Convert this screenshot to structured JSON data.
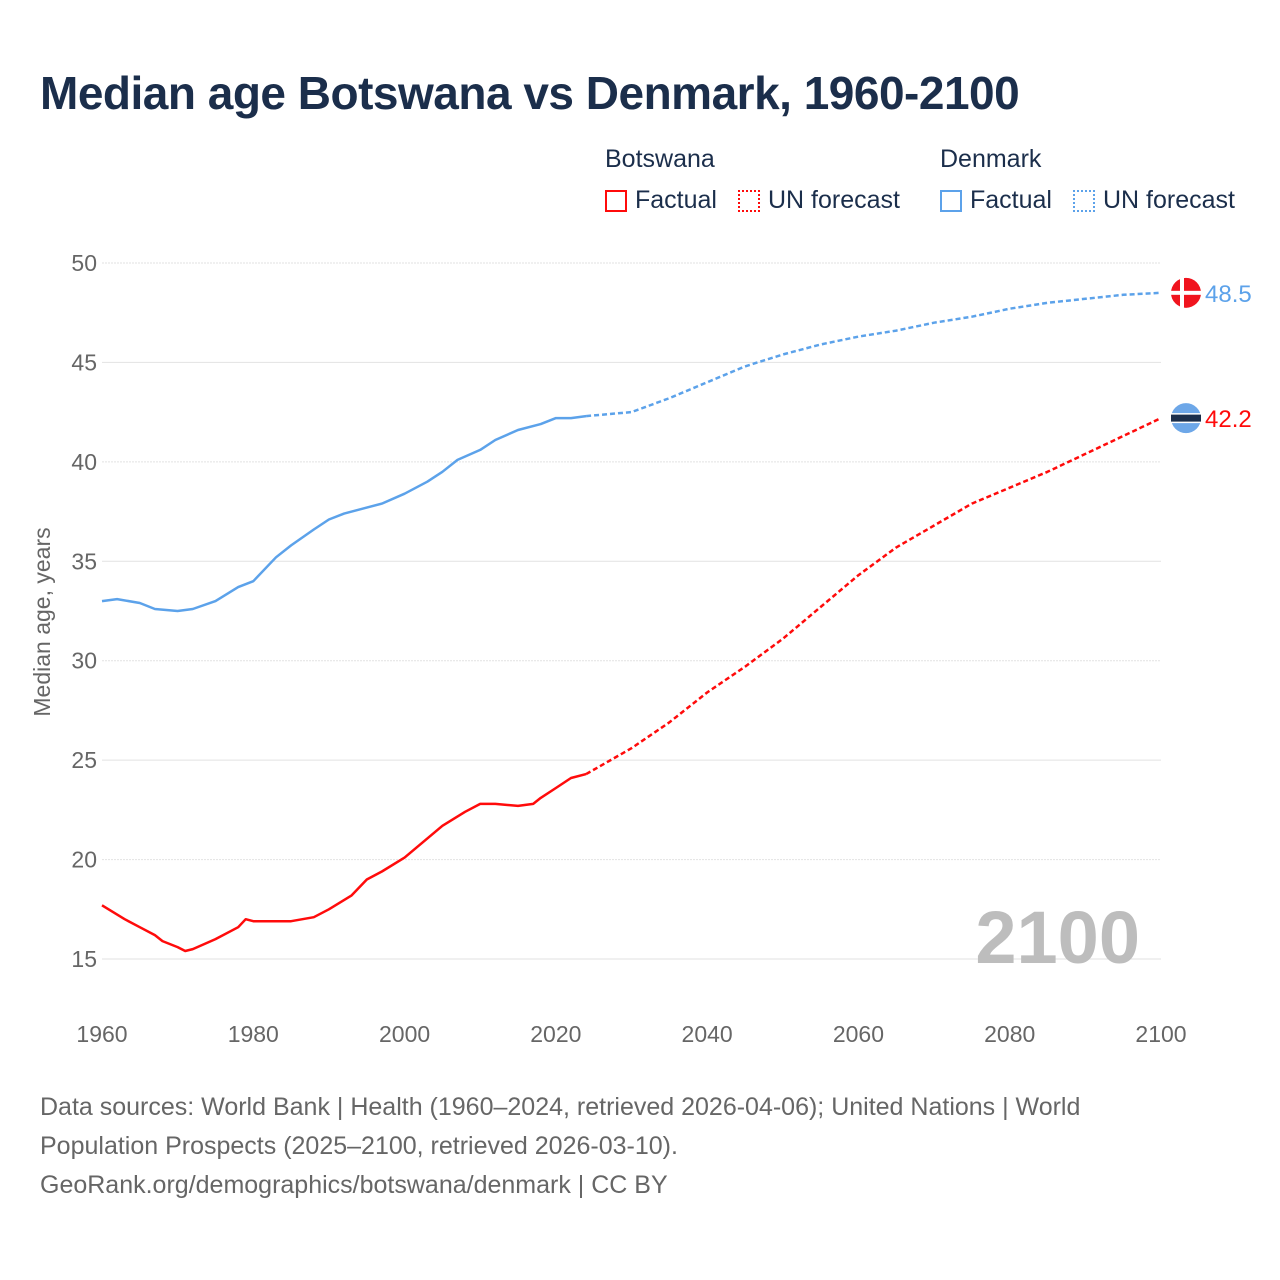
{
  "title": "Median age Botswana vs Denmark, 1960-2100",
  "legend": {
    "botswana": {
      "name": "Botswana",
      "factual": "Factual",
      "forecast": "UN forecast"
    },
    "denmark": {
      "name": "Denmark",
      "factual": "Factual",
      "forecast": "UN forecast"
    }
  },
  "colors": {
    "botswana": "#ff0b0b",
    "denmark": "#5ca2ea",
    "text": "#1b2e4b"
  },
  "watermark_year": "2100",
  "source_lines": [
    "Data sources: World Bank | Health (1960–2024, retrieved 2026-04-06); United Nations | World",
    "Population Prospects (2025–2100, retrieved 2026-03-10).",
    "GeoRank.org/demographics/botswana/denmark | CC BY"
  ],
  "chart_data": {
    "type": "line",
    "title": "Median age Botswana vs Denmark, 1960-2100",
    "xlabel": "",
    "ylabel": "Median age, years",
    "xlim": [
      1960,
      2100
    ],
    "ylim": [
      15,
      50
    ],
    "xticks": [
      1960,
      1980,
      2000,
      2020,
      2040,
      2060,
      2080,
      2100
    ],
    "yticks": [
      15,
      20,
      25,
      30,
      35,
      40,
      45,
      50
    ],
    "grid": true,
    "legend": "top-right",
    "end_labels": {
      "denmark": "48.5",
      "botswana": "42.2"
    },
    "series": [
      {
        "name": "Denmark",
        "kind": "factual",
        "color": "#5ca2ea",
        "x": [
          1960,
          1962,
          1965,
          1967,
          1970,
          1972,
          1975,
          1978,
          1980,
          1983,
          1985,
          1988,
          1990,
          1992,
          1995,
          1997,
          2000,
          2003,
          2005,
          2007,
          2010,
          2012,
          2015,
          2018,
          2020,
          2022,
          2024
        ],
        "y": [
          33.0,
          33.1,
          32.9,
          32.6,
          32.5,
          32.6,
          33.0,
          33.7,
          34.0,
          35.2,
          35.8,
          36.6,
          37.1,
          37.4,
          37.7,
          37.9,
          38.4,
          39.0,
          39.5,
          40.1,
          40.6,
          41.1,
          41.6,
          41.9,
          42.2,
          42.2,
          42.3
        ]
      },
      {
        "name": "Denmark",
        "kind": "UN forecast",
        "color": "#5ca2ea",
        "x": [
          2024,
          2030,
          2035,
          2040,
          2045,
          2050,
          2055,
          2060,
          2065,
          2070,
          2075,
          2080,
          2085,
          2090,
          2095,
          2100
        ],
        "y": [
          42.3,
          42.5,
          43.2,
          44.0,
          44.8,
          45.4,
          45.9,
          46.3,
          46.6,
          47.0,
          47.3,
          47.7,
          48.0,
          48.2,
          48.4,
          48.5
        ]
      },
      {
        "name": "Botswana",
        "kind": "factual",
        "color": "#ff0b0b",
        "x": [
          1960,
          1963,
          1965,
          1967,
          1968,
          1970,
          1971,
          1972,
          1975,
          1978,
          1979,
          1980,
          1985,
          1988,
          1990,
          1993,
          1995,
          1997,
          2000,
          2005,
          2008,
          2010,
          2012,
          2015,
          2017,
          2018,
          2020,
          2022,
          2024
        ],
        "y": [
          17.7,
          17.0,
          16.6,
          16.2,
          15.9,
          15.6,
          15.4,
          15.5,
          16.0,
          16.6,
          17.0,
          16.9,
          16.9,
          17.1,
          17.5,
          18.2,
          19.0,
          19.4,
          20.1,
          21.7,
          22.4,
          22.8,
          22.8,
          22.7,
          22.8,
          23.1,
          23.6,
          24.1,
          24.3
        ]
      },
      {
        "name": "Botswana",
        "kind": "UN forecast",
        "color": "#ff0b0b",
        "x": [
          2024,
          2030,
          2035,
          2040,
          2045,
          2050,
          2055,
          2060,
          2065,
          2070,
          2075,
          2080,
          2085,
          2090,
          2095,
          2100
        ],
        "y": [
          24.3,
          25.6,
          26.9,
          28.4,
          29.7,
          31.1,
          32.7,
          34.3,
          35.7,
          36.8,
          37.9,
          38.7,
          39.5,
          40.4,
          41.3,
          42.2
        ]
      }
    ]
  }
}
